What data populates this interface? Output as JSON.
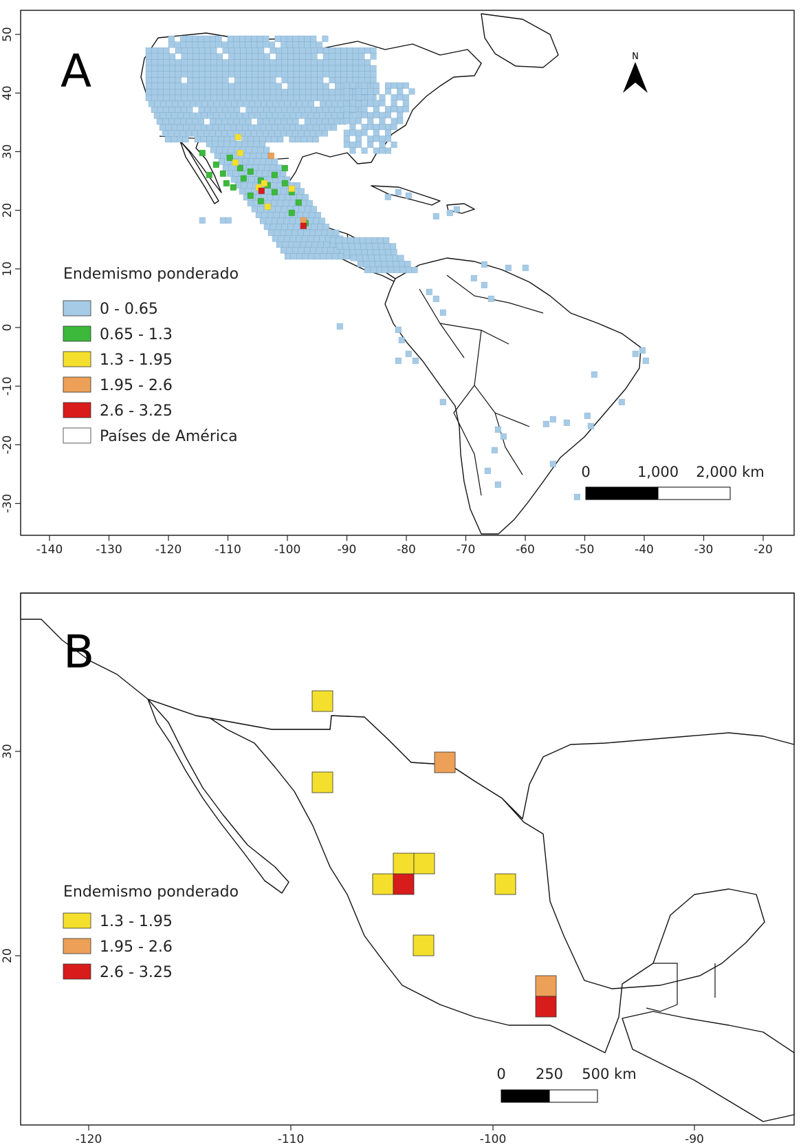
{
  "panel_a": {
    "letter": "A",
    "north_label": "N",
    "x_ticks": [
      "-140",
      "-130",
      "-120",
      "-110",
      "-100",
      "-90",
      "-80",
      "-70",
      "-60",
      "-50",
      "-40",
      "-30",
      "-20"
    ],
    "y_ticks": [
      "50",
      "40",
      "30",
      "20",
      "10",
      "0",
      "-10",
      "-20",
      "-30"
    ],
    "legend": {
      "title": "Endemismo ponderado",
      "items": [
        {
          "label": "0 - 0.65",
          "color": "#a6cbe6"
        },
        {
          "label": "0.65 - 1.3",
          "color": "#3cb93a"
        },
        {
          "label": "1.3 - 1.95",
          "color": "#f4e02c"
        },
        {
          "label": "1.95 - 2.6",
          "color": "#eda058"
        },
        {
          "label": "2.6 - 3.25",
          "color": "#d81b1b"
        },
        {
          "label": "Países de América",
          "color": "#ffffff"
        }
      ]
    },
    "scale": {
      "labels": [
        "0",
        "1,000",
        "2,000 km"
      ]
    }
  },
  "panel_b": {
    "letter": "B",
    "x_ticks": [
      "-120",
      "-110",
      "-100",
      "-90"
    ],
    "y_ticks": [
      "30",
      "20"
    ],
    "legend": {
      "title": "Endemismo ponderado",
      "items": [
        {
          "label": "1.3 - 1.95",
          "color": "#f4e02c"
        },
        {
          "label": "1.95 - 2.6",
          "color": "#eda058"
        },
        {
          "label": "2.6 - 3.25",
          "color": "#d81b1b"
        }
      ]
    },
    "scale": {
      "labels": [
        "0",
        "250",
        "500 km"
      ]
    }
  }
}
